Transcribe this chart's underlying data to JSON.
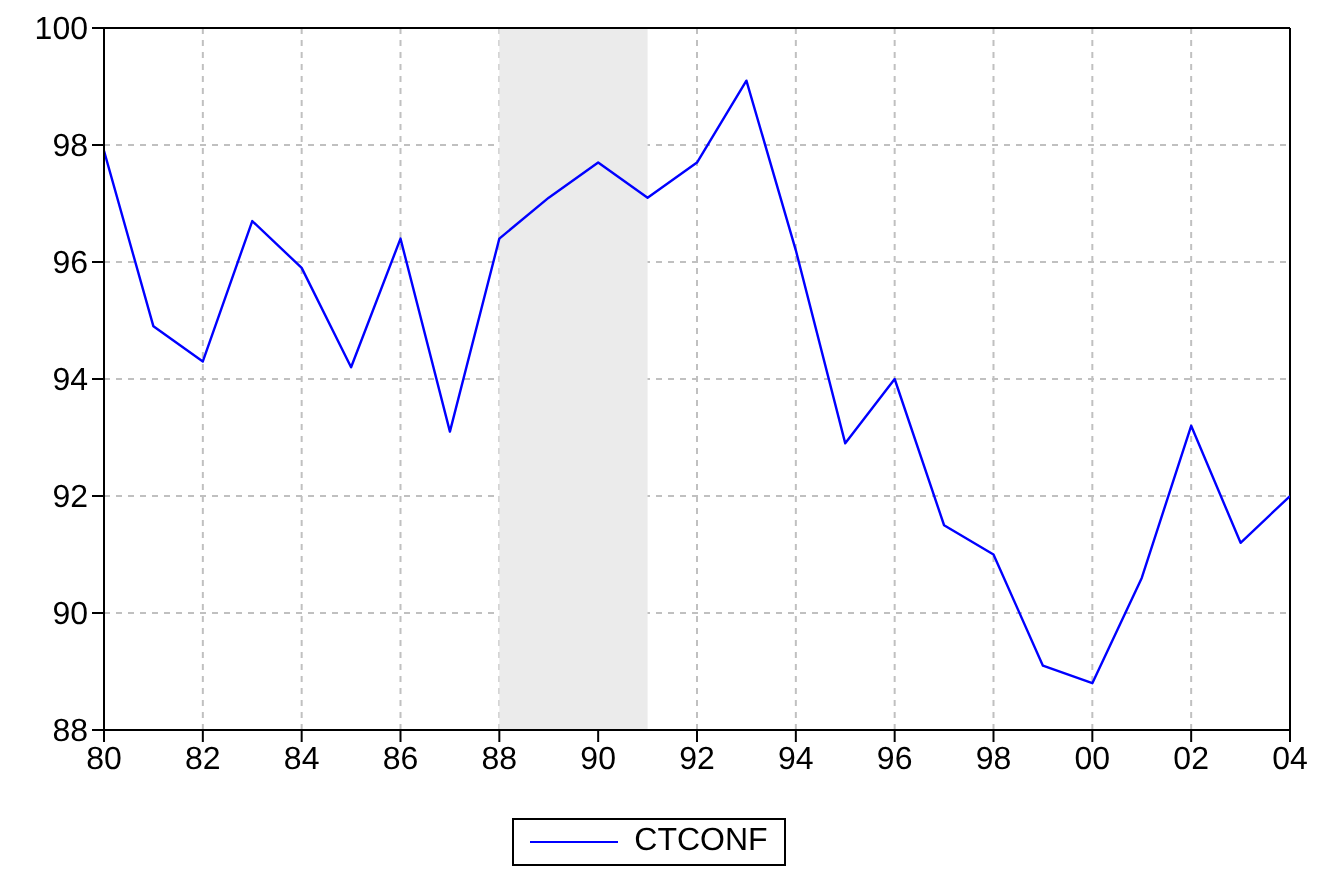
{
  "chart_data": {
    "type": "line",
    "x": [
      1980,
      1981,
      1982,
      1983,
      1984,
      1985,
      1986,
      1987,
      1988,
      1989,
      1990,
      1991,
      1992,
      1993,
      1994,
      1995,
      1996,
      1997,
      1998,
      1999,
      2000,
      2001,
      2002,
      2003,
      2004
    ],
    "series": [
      {
        "name": "CTCONF",
        "color": "#0000ff",
        "values": [
          97.9,
          94.9,
          94.3,
          96.7,
          95.9,
          94.2,
          96.4,
          93.1,
          96.4,
          97.1,
          97.7,
          97.1,
          97.7,
          99.1,
          96.2,
          92.9,
          94.0,
          91.5,
          91.0,
          89.1,
          88.8,
          90.6,
          93.2,
          91.2,
          92.0
        ]
      }
    ],
    "xlim": [
      1980,
      2004
    ],
    "xticks": [
      {
        "value": 1980,
        "label": "80"
      },
      {
        "value": 1982,
        "label": "82"
      },
      {
        "value": 1984,
        "label": "84"
      },
      {
        "value": 1986,
        "label": "86"
      },
      {
        "value": 1988,
        "label": "88"
      },
      {
        "value": 1990,
        "label": "90"
      },
      {
        "value": 1992,
        "label": "92"
      },
      {
        "value": 1994,
        "label": "94"
      },
      {
        "value": 1996,
        "label": "96"
      },
      {
        "value": 1998,
        "label": "98"
      },
      {
        "value": 2000,
        "label": "00"
      },
      {
        "value": 2002,
        "label": "02"
      },
      {
        "value": 2004,
        "label": "04"
      }
    ],
    "ylim": [
      88,
      100
    ],
    "yticks": [
      88,
      90,
      92,
      94,
      96,
      98,
      100
    ],
    "bands": [
      {
        "axis": "x",
        "from": 1988,
        "to": 1991,
        "color": "#ebebeb"
      }
    ],
    "grid": true,
    "legend": "bottom",
    "marker": "none",
    "line_style": "solid"
  }
}
